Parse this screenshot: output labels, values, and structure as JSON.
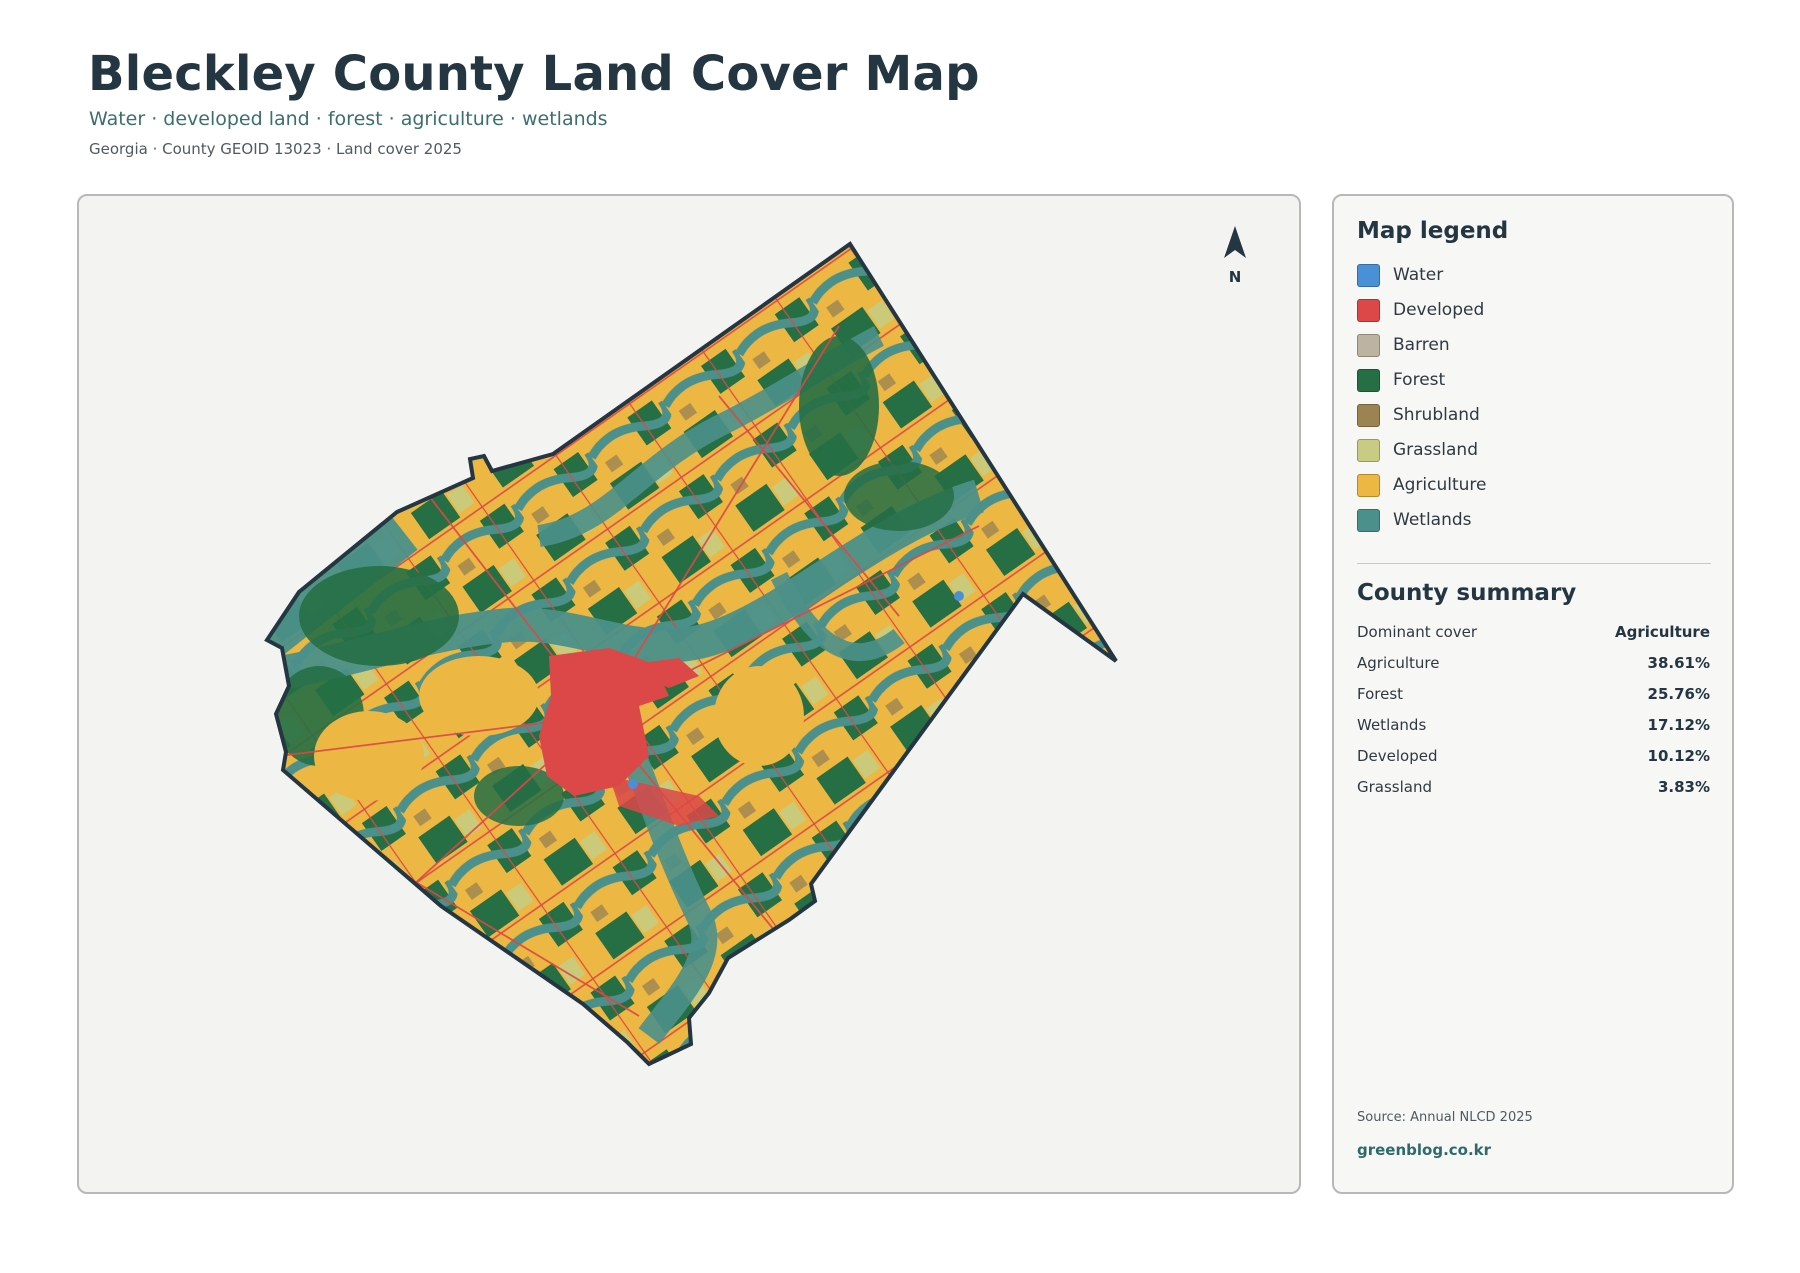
{
  "header": {
    "title": "Bleckley County Land Cover Map",
    "subtitle": "Water · developed land · forest · agriculture · wetlands",
    "meta": "Georgia · County GEOID 13023 · Land cover 2025"
  },
  "map": {
    "north_label": "N"
  },
  "legend": {
    "title": "Map legend",
    "items": [
      {
        "label": "Water",
        "color": "#4a90d6"
      },
      {
        "label": "Developed",
        "color": "#dc4848"
      },
      {
        "label": "Barren",
        "color": "#bcb4a0"
      },
      {
        "label": "Forest",
        "color": "#266f45"
      },
      {
        "label": "Shrubland",
        "color": "#9c8452"
      },
      {
        "label": "Grassland",
        "color": "#c8cc82"
      },
      {
        "label": "Agriculture",
        "color": "#ecb742"
      },
      {
        "label": "Wetlands",
        "color": "#4b908a"
      }
    ]
  },
  "summary": {
    "title": "County summary",
    "rows": [
      {
        "label": "Dominant cover",
        "value": "Agriculture"
      },
      {
        "label": "Agriculture",
        "value": "38.61%"
      },
      {
        "label": "Forest",
        "value": "25.76%"
      },
      {
        "label": "Wetlands",
        "value": "17.12%"
      },
      {
        "label": "Developed",
        "value": "10.12%"
      },
      {
        "label": "Grassland",
        "value": "3.83%"
      }
    ]
  },
  "footer": {
    "source": "Source: Annual NLCD 2025",
    "site": "greenblog.co.kr"
  }
}
